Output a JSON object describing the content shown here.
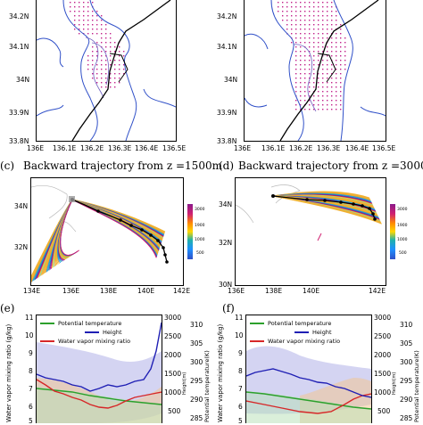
{
  "panel_a": {
    "lat_ticks": [
      "34.2N",
      "34.1N",
      "34N",
      "33.9N",
      "33.8N"
    ],
    "lon_ticks": [
      "136E",
      "136.1E",
      "136.2E",
      "136.3E",
      "136.4E",
      "136.5E"
    ]
  },
  "panel_b": {
    "lat_ticks": [
      "34.2N",
      "34.1N",
      "34N",
      "33.9N",
      "33.8N"
    ],
    "lon_ticks": [
      "136E",
      "136.1E",
      "136.2E",
      "136.3E",
      "136.4E",
      "136.5E"
    ]
  },
  "panel_c": {
    "label": "(c)",
    "title": "Backward trajectory from z =1500m",
    "lat_ticks": [
      "34N",
      "32N"
    ],
    "lon_ticks": [
      "134E",
      "136E",
      "138E",
      "140E",
      "142E"
    ],
    "colorbar_ticks": [
      "3000",
      "1900",
      "1000",
      "500"
    ]
  },
  "panel_d": {
    "label": "(d)",
    "title": "Backward trajectory from z =3000m",
    "lat_ticks": [
      "34N",
      "32N",
      "30N"
    ],
    "lon_ticks": [
      "136E",
      "138E",
      "140E",
      "142E"
    ],
    "colorbar_ticks": [
      "3000",
      "1900",
      "1000",
      "500"
    ]
  },
  "panel_e": {
    "label": "(e)",
    "legend": [
      "Potential temperature",
      "Height",
      "Water vapor mixing ratio"
    ],
    "left_ticks": [
      "11",
      "10",
      "9",
      "8",
      "7",
      "6",
      "5"
    ],
    "right_height_ticks": [
      "3000",
      "2500",
      "2000",
      "1500",
      "1000",
      "500"
    ],
    "right_theta_ticks": [
      "310",
      "305",
      "300",
      "295",
      "290",
      "285"
    ],
    "left_label": "Water vapor mixing ratio (g/kg)",
    "height_label": "Height(m)",
    "theta_label": "Potential temperature(K)"
  },
  "panel_f": {
    "label": "(f)",
    "legend": [
      "Potential temperature",
      "Height",
      "Water vapor mixing ratio"
    ],
    "left_ticks": [
      "11",
      "10",
      "9",
      "8",
      "7",
      "6",
      "5"
    ],
    "right_height_ticks": [
      "3000",
      "2500",
      "2000",
      "1500",
      "1000",
      "500"
    ],
    "right_theta_ticks": [
      "310",
      "305",
      "300",
      "295",
      "290",
      "285"
    ],
    "left_label": "Water vapor mixing ratio (g/kg)",
    "height_label": "Height(m)",
    "theta_label": "Potential temperature(K)"
  },
  "colors": {
    "potential_temperature": "#2ca02c",
    "height": "#1f1fb4",
    "water_vapor": "#d62728",
    "trajectory_main": "#f0b030",
    "contour": "#3050c8",
    "grid_dots": "#c0208a"
  }
}
